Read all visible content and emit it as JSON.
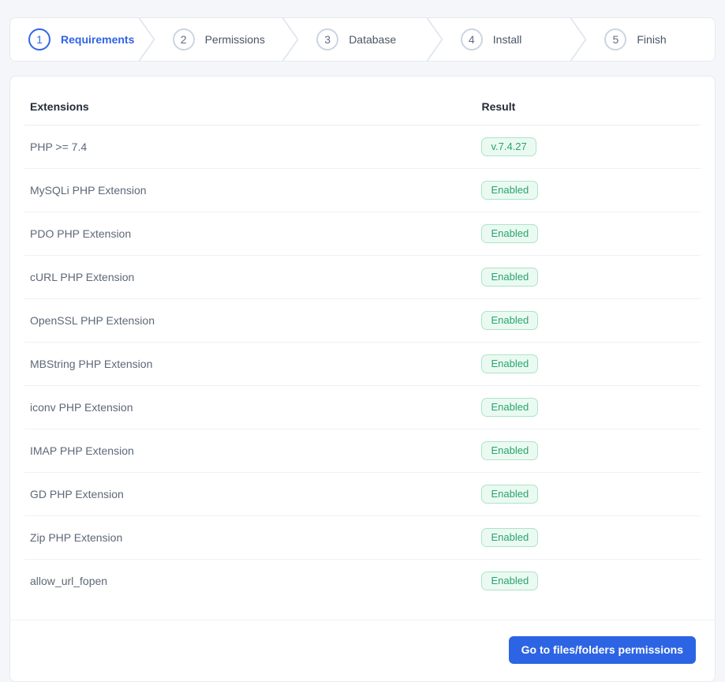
{
  "stepper": {
    "steps": [
      {
        "number": "1",
        "label": "Requirements",
        "active": true
      },
      {
        "number": "2",
        "label": "Permissions",
        "active": false
      },
      {
        "number": "3",
        "label": "Database",
        "active": false
      },
      {
        "number": "4",
        "label": "Install",
        "active": false
      },
      {
        "number": "5",
        "label": "Finish",
        "active": false
      }
    ]
  },
  "requirements_table": {
    "headers": {
      "extensions": "Extensions",
      "result": "Result"
    },
    "rows": [
      {
        "name": "PHP >= 7.4",
        "result": "v.7.4.27"
      },
      {
        "name": "MySQLi PHP Extension",
        "result": "Enabled"
      },
      {
        "name": "PDO PHP Extension",
        "result": "Enabled"
      },
      {
        "name": "cURL PHP Extension",
        "result": "Enabled"
      },
      {
        "name": "OpenSSL PHP Extension",
        "result": "Enabled"
      },
      {
        "name": "MBString PHP Extension",
        "result": "Enabled"
      },
      {
        "name": "iconv PHP Extension",
        "result": "Enabled"
      },
      {
        "name": "IMAP PHP Extension",
        "result": "Enabled"
      },
      {
        "name": "GD PHP Extension",
        "result": "Enabled"
      },
      {
        "name": "Zip PHP Extension",
        "result": "Enabled"
      },
      {
        "name": "allow_url_fopen",
        "result": "Enabled"
      }
    ]
  },
  "footer": {
    "button_label": "Go to files/folders permissions"
  },
  "colors": {
    "accent_blue": "#2d64e4",
    "active_step_blue": "#3566e8",
    "badge_green_text": "#28a46a",
    "badge_green_bg": "#eafaf2",
    "badge_green_border": "#ade4c5",
    "page_background": "#f4f6f9"
  }
}
